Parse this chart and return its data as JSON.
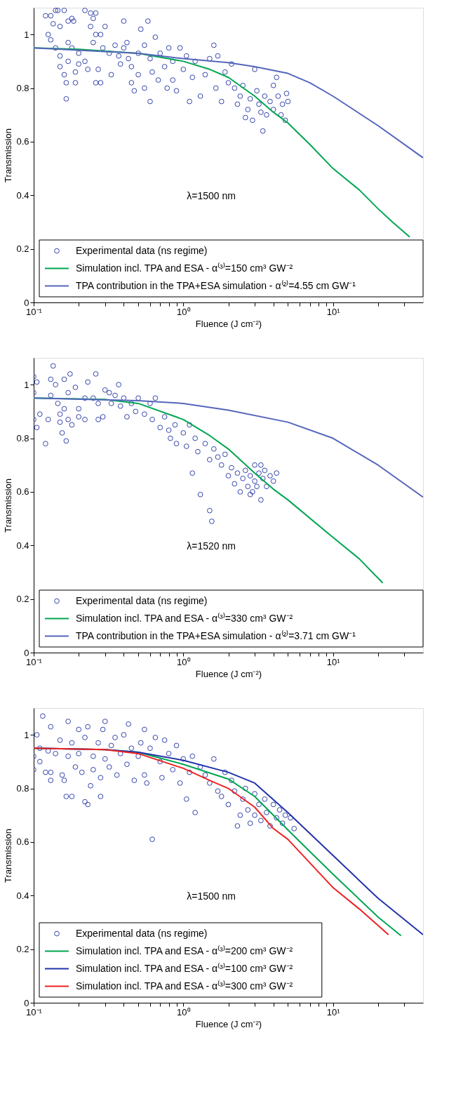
{
  "chart_data": [
    {
      "type": "scatter",
      "xlabel": "Fluence (J cm⁻²)",
      "ylabel": "Transmission",
      "log": "x",
      "grid": false,
      "legend": "bottom",
      "xlim": [
        0.1,
        40
      ],
      "ylim": [
        0,
        1.1
      ],
      "xticks": [
        {
          "value": 0.1,
          "label": "10⁻¹"
        },
        {
          "value": 0.2,
          "label": null
        },
        {
          "value": 0.3,
          "label": null
        },
        {
          "value": 0.4,
          "label": null
        },
        {
          "value": 0.5,
          "label": null
        },
        {
          "value": 0.6,
          "label": null
        },
        {
          "value": 0.7,
          "label": null
        },
        {
          "value": 0.8,
          "label": null
        },
        {
          "value": 0.9,
          "label": null
        },
        {
          "value": 1,
          "label": "10⁰"
        },
        {
          "value": 2,
          "label": null
        },
        {
          "value": 3,
          "label": null
        },
        {
          "value": 4,
          "label": null
        },
        {
          "value": 5,
          "label": null
        },
        {
          "value": 6,
          "label": null
        },
        {
          "value": 7,
          "label": null
        },
        {
          "value": 8,
          "label": null
        },
        {
          "value": 9,
          "label": null
        },
        {
          "value": 10,
          "label": "10¹"
        },
        {
          "value": 20,
          "label": null
        },
        {
          "value": 30,
          "label": null
        }
      ],
      "yticks": [
        0,
        0.2,
        0.4,
        0.6,
        0.8,
        1
      ],
      "annotations": [
        "λ=1500 nm"
      ],
      "series": [
        {
          "name": "Experimental data (ns regime)",
          "marker": "circle",
          "color": "#3344aa",
          "x": [
            0.12,
            0.125,
            0.13,
            0.135,
            0.14,
            0.145,
            0.16,
            0.15,
            0.17,
            0.18,
            0.185,
            0.22,
            0.24,
            0.25,
            0.26,
            0.24,
            0.26,
            0.28,
            0.3,
            0.13,
            0.14,
            0.15,
            0.15,
            0.16,
            0.165,
            0.165,
            0.17,
            0.17,
            0.18,
            0.19,
            0.19,
            0.2,
            0.2,
            0.22,
            0.23,
            0.25,
            0.26,
            0.27,
            0.28,
            0.29,
            0.32,
            0.33,
            0.35,
            0.37,
            0.38,
            0.4,
            0.4,
            0.42,
            0.43,
            0.45,
            0.45,
            0.47,
            0.5,
            0.5,
            0.52,
            0.55,
            0.55,
            0.58,
            0.6,
            0.6,
            0.62,
            0.65,
            0.68,
            0.7,
            0.75,
            0.78,
            0.8,
            0.85,
            0.85,
            0.9,
            0.95,
            1.0,
            1.05,
            1.1,
            1.15,
            1.2,
            1.3,
            1.4,
            1.5,
            1.6,
            1.65,
            1.7,
            1.8,
            1.9,
            2.0,
            2.1,
            2.2,
            2.3,
            2.4,
            2.5,
            2.6,
            2.7,
            2.8,
            2.9,
            3.0,
            3.1,
            3.2,
            3.3,
            3.4,
            3.5,
            3.6,
            3.8,
            4.0,
            4.0,
            4.2,
            4.3,
            4.5,
            4.6,
            4.8,
            5.0,
            4.9
          ],
          "values": [
            1.07,
            1.0,
            1.07,
            1.04,
            1.09,
            1.09,
            1.09,
            1.03,
            1.05,
            1.06,
            1.05,
            1.09,
            1.08,
            1.06,
            1.08,
            1.03,
            1.0,
            1.0,
            1.03,
            0.98,
            0.95,
            0.92,
            0.88,
            0.85,
            0.82,
            0.76,
            0.97,
            0.9,
            0.95,
            0.86,
            0.82,
            0.93,
            0.89,
            0.9,
            0.87,
            0.97,
            0.82,
            0.87,
            0.82,
            0.95,
            0.93,
            0.85,
            0.96,
            0.92,
            0.89,
            1.05,
            0.95,
            0.97,
            0.91,
            0.88,
            0.82,
            0.79,
            0.93,
            0.85,
            1.02,
            0.96,
            0.8,
            1.05,
            0.91,
            0.75,
            0.86,
            0.99,
            0.83,
            0.93,
            0.88,
            0.8,
            0.95,
            0.9,
            0.83,
            0.79,
            0.95,
            0.87,
            0.92,
            0.75,
            0.84,
            0.9,
            0.77,
            0.85,
            0.91,
            0.96,
            0.8,
            0.92,
            0.75,
            0.86,
            0.82,
            0.89,
            0.8,
            0.74,
            0.77,
            0.81,
            0.69,
            0.72,
            0.76,
            0.68,
            0.87,
            0.79,
            0.74,
            0.71,
            0.64,
            0.77,
            0.7,
            0.75,
            0.81,
            0.72,
            0.84,
            0.77,
            0.7,
            0.74,
            0.68,
            0.75,
            0.78
          ]
        },
        {
          "name": "Simulation incl. TPA and ESA - α⁽³⁾=150 cm³ GW⁻²",
          "type": "line",
          "color": "#00a651",
          "x": [
            0.1,
            0.2,
            0.5,
            1,
            1.5,
            2,
            3,
            4,
            5,
            7,
            10,
            15,
            20,
            25,
            32.6
          ],
          "values": [
            0.95,
            0.945,
            0.93,
            0.9,
            0.87,
            0.84,
            0.77,
            0.71,
            0.67,
            0.59,
            0.5,
            0.42,
            0.35,
            0.3,
            0.244
          ]
        },
        {
          "name": "TPA contribution in the TPA+ESA simulation - α⁽²⁾=4.55 cm GW⁻¹",
          "type": "line",
          "color": "#5566bb",
          "x": [
            0.1,
            0.5,
            1,
            2,
            3,
            5,
            7,
            10,
            20,
            40
          ],
          "values": [
            0.95,
            0.93,
            0.91,
            0.895,
            0.88,
            0.855,
            0.82,
            0.77,
            0.66,
            0.54
          ]
        }
      ]
    },
    {
      "type": "scatter",
      "xlabel": "Fluence (J cm⁻²)",
      "ylabel": "Transmission",
      "log": "x",
      "grid": false,
      "legend": "bottom",
      "xlim": [
        0.1,
        40
      ],
      "ylim": [
        0,
        1.1
      ],
      "xticks": [
        {
          "value": 0.1,
          "label": "10⁻¹"
        },
        {
          "value": 0.2,
          "label": null
        },
        {
          "value": 0.3,
          "label": null
        },
        {
          "value": 0.4,
          "label": null
        },
        {
          "value": 0.5,
          "label": null
        },
        {
          "value": 0.6,
          "label": null
        },
        {
          "value": 0.7,
          "label": null
        },
        {
          "value": 0.8,
          "label": null
        },
        {
          "value": 0.9,
          "label": null
        },
        {
          "value": 1,
          "label": "10⁰"
        },
        {
          "value": 2,
          "label": null
        },
        {
          "value": 3,
          "label": null
        },
        {
          "value": 4,
          "label": null
        },
        {
          "value": 5,
          "label": null
        },
        {
          "value": 6,
          "label": null
        },
        {
          "value": 7,
          "label": null
        },
        {
          "value": 8,
          "label": null
        },
        {
          "value": 9,
          "label": null
        },
        {
          "value": 10,
          "label": "10¹"
        },
        {
          "value": 20,
          "label": null
        },
        {
          "value": 30,
          "label": null
        }
      ],
      "yticks": [
        0,
        0.2,
        0.4,
        0.6,
        0.8,
        1
      ],
      "annotations": [
        "λ=1520 nm"
      ],
      "series": [
        {
          "name": "Experimental data (ns regime)",
          "marker": "circle",
          "color": "#3344aa",
          "x": [
            0.1,
            0.1,
            0.1,
            0.105,
            0.105,
            0.11,
            0.12,
            0.125,
            0.13,
            0.13,
            0.135,
            0.14,
            0.145,
            0.15,
            0.15,
            0.155,
            0.16,
            0.16,
            0.165,
            0.17,
            0.17,
            0.175,
            0.18,
            0.19,
            0.2,
            0.2,
            0.22,
            0.22,
            0.23,
            0.25,
            0.26,
            0.27,
            0.27,
            0.29,
            0.3,
            0.32,
            0.33,
            0.35,
            0.37,
            0.38,
            0.4,
            0.42,
            0.45,
            0.48,
            0.5,
            0.55,
            0.6,
            0.62,
            0.65,
            0.7,
            0.75,
            0.8,
            0.82,
            0.88,
            0.9,
            1.0,
            1.05,
            1.1,
            1.15,
            1.2,
            1.25,
            1.3,
            1.4,
            1.5,
            1.55,
            1.5,
            1.6,
            1.7,
            1.8,
            1.9,
            2.0,
            2.1,
            2.2,
            2.3,
            2.4,
            2.5,
            2.6,
            2.7,
            2.8,
            2.9,
            3.0,
            3.0,
            3.1,
            3.2,
            3.3,
            3.4,
            3.5,
            3.6,
            3.8,
            4.0,
            4.2,
            3.3,
            2.8
          ],
          "values": [
            1.03,
            0.97,
            0.87,
            1.01,
            0.84,
            0.89,
            0.78,
            0.87,
            1.02,
            0.96,
            1.07,
            1.0,
            0.93,
            0.89,
            0.86,
            0.82,
            1.02,
            0.91,
            0.79,
            0.97,
            0.87,
            1.04,
            0.85,
            0.99,
            0.91,
            0.88,
            0.95,
            0.87,
            1.01,
            0.95,
            1.04,
            0.93,
            0.87,
            0.88,
            0.98,
            0.97,
            0.93,
            0.96,
            1.0,
            0.92,
            0.95,
            0.88,
            0.93,
            0.9,
            0.95,
            0.89,
            0.93,
            0.87,
            0.95,
            0.84,
            0.88,
            0.83,
            0.8,
            0.85,
            0.78,
            0.82,
            0.77,
            0.85,
            0.67,
            0.8,
            0.75,
            0.59,
            0.78,
            0.53,
            0.49,
            0.72,
            0.76,
            0.73,
            0.7,
            0.74,
            0.66,
            0.69,
            0.63,
            0.67,
            0.6,
            0.65,
            0.68,
            0.62,
            0.66,
            0.6,
            0.7,
            0.64,
            0.62,
            0.67,
            0.57,
            0.65,
            0.68,
            0.62,
            0.66,
            0.64,
            0.67,
            0.7,
            0.59
          ]
        },
        {
          "name": "Simulation incl. TPA and ESA - α⁽³⁾=330 cm³ GW⁻²",
          "type": "line",
          "color": "#00a651",
          "x": [
            0.1,
            0.3,
            0.5,
            1,
            1.5,
            2,
            3,
            4,
            5,
            10,
            15,
            21.5
          ],
          "values": [
            0.95,
            0.945,
            0.93,
            0.87,
            0.81,
            0.76,
            0.67,
            0.61,
            0.57,
            0.43,
            0.35,
            0.26
          ]
        },
        {
          "name": "TPA contribution in the TPA+ESA simulation - α⁽²⁾=3.71 cm GW⁻¹",
          "type": "line",
          "color": "#5566bb",
          "x": [
            0.1,
            0.5,
            1,
            2,
            5,
            10,
            20,
            40
          ],
          "values": [
            0.95,
            0.94,
            0.93,
            0.905,
            0.86,
            0.8,
            0.7,
            0.58
          ]
        }
      ]
    },
    {
      "type": "scatter",
      "xlabel": "Fluence (J cm⁻²)",
      "ylabel": "Transmission",
      "log": "x",
      "grid": false,
      "legend": "bottom left",
      "xlim": [
        0.1,
        40
      ],
      "ylim": [
        0,
        1.1
      ],
      "xticks": [
        {
          "value": 0.1,
          "label": "10⁻¹"
        },
        {
          "value": 0.2,
          "label": null
        },
        {
          "value": 0.3,
          "label": null
        },
        {
          "value": 0.4,
          "label": null
        },
        {
          "value": 0.5,
          "label": null
        },
        {
          "value": 0.6,
          "label": null
        },
        {
          "value": 0.7,
          "label": null
        },
        {
          "value": 0.8,
          "label": null
        },
        {
          "value": 0.9,
          "label": null
        },
        {
          "value": 1,
          "label": "10⁰"
        },
        {
          "value": 2,
          "label": null
        },
        {
          "value": 3,
          "label": null
        },
        {
          "value": 4,
          "label": null
        },
        {
          "value": 5,
          "label": null
        },
        {
          "value": 6,
          "label": null
        },
        {
          "value": 7,
          "label": null
        },
        {
          "value": 8,
          "label": null
        },
        {
          "value": 9,
          "label": null
        },
        {
          "value": 10,
          "label": "10¹"
        },
        {
          "value": 20,
          "label": null
        },
        {
          "value": 30,
          "label": null
        }
      ],
      "yticks": [
        0,
        0.2,
        0.4,
        0.6,
        0.8,
        1
      ],
      "annotations": [
        "λ=1500 nm"
      ],
      "series": [
        {
          "name": "Experimental data (ns regime)",
          "marker": "circle",
          "color": "#3344aa",
          "x": [
            0.1,
            0.1,
            0.105,
            0.11,
            0.11,
            0.115,
            0.12,
            0.125,
            0.13,
            0.13,
            0.13,
            0.14,
            0.15,
            0.155,
            0.16,
            0.165,
            0.17,
            0.17,
            0.18,
            0.18,
            0.19,
            0.2,
            0.2,
            0.21,
            0.22,
            0.22,
            0.23,
            0.23,
            0.24,
            0.25,
            0.25,
            0.27,
            0.28,
            0.28,
            0.29,
            0.3,
            0.3,
            0.32,
            0.33,
            0.35,
            0.36,
            0.38,
            0.4,
            0.42,
            0.43,
            0.45,
            0.47,
            0.5,
            0.52,
            0.55,
            0.55,
            0.57,
            0.6,
            0.62,
            0.65,
            0.7,
            0.72,
            0.75,
            0.8,
            0.85,
            0.9,
            0.95,
            1.0,
            1.05,
            1.1,
            1.15,
            1.2,
            1.3,
            1.4,
            1.5,
            1.6,
            1.7,
            1.8,
            1.9,
            2.0,
            2.1,
            2.2,
            2.3,
            2.4,
            2.5,
            2.6,
            2.7,
            2.8,
            3.0,
            3.0,
            3.2,
            3.3,
            3.5,
            3.6,
            3.8,
            4.0,
            4.2,
            4.4,
            4.6,
            4.8,
            5.2,
            5.5
          ],
          "values": [
            0.92,
            0.87,
            1.0,
            0.95,
            0.9,
            1.07,
            0.86,
            0.94,
            1.03,
            0.83,
            0.86,
            0.93,
            0.98,
            0.85,
            0.83,
            0.77,
            1.05,
            0.92,
            0.77,
            0.97,
            0.88,
            1.02,
            0.93,
            0.86,
            0.75,
            0.99,
            0.74,
            1.03,
            0.81,
            0.92,
            0.87,
            0.97,
            0.84,
            0.77,
            1.02,
            1.05,
            0.91,
            0.88,
            0.96,
            0.99,
            0.85,
            0.93,
            1.0,
            0.89,
            1.04,
            0.95,
            0.83,
            0.92,
            0.97,
            1.02,
            0.85,
            0.82,
            0.95,
            0.61,
            0.99,
            0.9,
            0.84,
            0.98,
            0.93,
            0.87,
            0.96,
            0.82,
            0.91,
            0.76,
            0.86,
            0.92,
            0.71,
            0.88,
            0.85,
            0.82,
            0.91,
            0.79,
            0.77,
            0.86,
            0.74,
            0.83,
            0.79,
            0.66,
            0.7,
            0.76,
            0.8,
            0.72,
            0.67,
            0.78,
            0.7,
            0.74,
            0.68,
            0.76,
            0.71,
            0.66,
            0.74,
            0.69,
            0.72,
            0.67,
            0.7,
            0.69,
            0.65
          ]
        },
        {
          "name": "Simulation incl. TPA and ESA - α⁽³⁾=200 cm³ GW⁻²",
          "type": "line",
          "color": "#00a651",
          "x": [
            0.1,
            0.3,
            0.5,
            1,
            2,
            3,
            4,
            5,
            10,
            20,
            28.5
          ],
          "values": [
            0.95,
            0.945,
            0.935,
            0.89,
            0.835,
            0.77,
            0.7,
            0.645,
            0.48,
            0.32,
            0.25
          ]
        },
        {
          "name": "Simulation incl. TPA and ESA - α⁽³⁾=100 cm³ GW⁻²",
          "type": "line",
          "color": "#2233aa",
          "x": [
            0.1,
            0.3,
            0.5,
            1,
            2,
            3,
            5,
            10,
            20,
            40
          ],
          "values": [
            0.95,
            0.945,
            0.935,
            0.905,
            0.86,
            0.82,
            0.71,
            0.55,
            0.39,
            0.254
          ]
        },
        {
          "name": "Simulation incl. TPA and ESA - α⁽³⁾=300 cm³ GW⁻²",
          "type": "line",
          "color": "#ee2222",
          "x": [
            0.1,
            0.3,
            0.5,
            1,
            1.5,
            2,
            3,
            4,
            5,
            10,
            15,
            23.5
          ],
          "values": [
            0.95,
            0.945,
            0.93,
            0.875,
            0.83,
            0.8,
            0.73,
            0.65,
            0.61,
            0.43,
            0.35,
            0.254
          ]
        }
      ]
    }
  ]
}
